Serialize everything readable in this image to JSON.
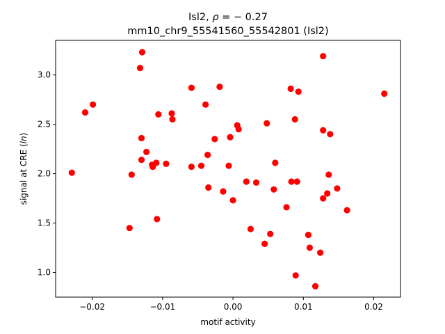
{
  "chart_data": {
    "type": "scatter",
    "title_line1": "Isl2, ρ = − 0.27",
    "title_line2": "mm10_chr9_55541560_55542801 (Isl2)",
    "xlabel": "motif activity",
    "ylabel": "signal at CRE (ln)",
    "xlim": [
      -0.0252,
      0.0238
    ],
    "ylim": [
      0.75,
      3.35
    ],
    "xticks": [
      -0.02,
      -0.01,
      0.0,
      0.01,
      0.02
    ],
    "xtick_labels": [
      "−0.02",
      "−0.01",
      "0.00",
      "0.01",
      "0.02"
    ],
    "yticks": [
      1.0,
      1.5,
      2.0,
      2.5,
      3.0
    ],
    "ytick_labels": [
      "1.0",
      "1.5",
      "2.0",
      "2.5",
      "3.0"
    ],
    "grid": false,
    "marker_color": "#ff0000",
    "points": [
      {
        "x": -0.0229,
        "y": 2.01
      },
      {
        "x": -0.021,
        "y": 2.62
      },
      {
        "x": -0.0199,
        "y": 2.7
      },
      {
        "x": -0.0147,
        "y": 1.45
      },
      {
        "x": -0.0144,
        "y": 1.99
      },
      {
        "x": -0.0132,
        "y": 3.07
      },
      {
        "x": -0.0129,
        "y": 3.23
      },
      {
        "x": -0.013,
        "y": 2.36
      },
      {
        "x": -0.013,
        "y": 2.14
      },
      {
        "x": -0.0123,
        "y": 2.22
      },
      {
        "x": -0.0115,
        "y": 2.09
      },
      {
        "x": -0.0114,
        "y": 2.07
      },
      {
        "x": -0.0109,
        "y": 2.11
      },
      {
        "x": -0.0108,
        "y": 1.54
      },
      {
        "x": -0.0106,
        "y": 2.6
      },
      {
        "x": -0.0095,
        "y": 2.1
      },
      {
        "x": -0.0087,
        "y": 2.61
      },
      {
        "x": -0.0086,
        "y": 2.55
      },
      {
        "x": -0.0059,
        "y": 2.87
      },
      {
        "x": -0.0059,
        "y": 2.07
      },
      {
        "x": -0.0045,
        "y": 2.08
      },
      {
        "x": -0.0039,
        "y": 2.7
      },
      {
        "x": -0.0036,
        "y": 2.19
      },
      {
        "x": -0.0035,
        "y": 1.86
      },
      {
        "x": -0.0026,
        "y": 2.35
      },
      {
        "x": -0.0019,
        "y": 2.88
      },
      {
        "x": -0.0014,
        "y": 1.82
      },
      {
        "x": -0.0006,
        "y": 2.08
      },
      {
        "x": -0.0004,
        "y": 2.37
      },
      {
        "x": 0.0,
        "y": 1.73
      },
      {
        "x": 0.0006,
        "y": 2.49
      },
      {
        "x": 0.0008,
        "y": 2.45
      },
      {
        "x": 0.0019,
        "y": 1.92
      },
      {
        "x": 0.0025,
        "y": 1.44
      },
      {
        "x": 0.0033,
        "y": 1.91
      },
      {
        "x": 0.0045,
        "y": 1.29
      },
      {
        "x": 0.0048,
        "y": 2.51
      },
      {
        "x": 0.0053,
        "y": 1.39
      },
      {
        "x": 0.0058,
        "y": 1.84
      },
      {
        "x": 0.006,
        "y": 2.11
      },
      {
        "x": 0.0076,
        "y": 1.66
      },
      {
        "x": 0.0082,
        "y": 2.86
      },
      {
        "x": 0.0083,
        "y": 1.92
      },
      {
        "x": 0.0088,
        "y": 2.55
      },
      {
        "x": 0.0089,
        "y": 0.97
      },
      {
        "x": 0.0091,
        "y": 1.92
      },
      {
        "x": 0.0093,
        "y": 2.83
      },
      {
        "x": 0.0107,
        "y": 1.38
      },
      {
        "x": 0.0109,
        "y": 1.25
      },
      {
        "x": 0.0117,
        "y": 0.86
      },
      {
        "x": 0.0124,
        "y": 1.2
      },
      {
        "x": 0.0128,
        "y": 3.19
      },
      {
        "x": 0.0128,
        "y": 2.44
      },
      {
        "x": 0.0128,
        "y": 1.75
      },
      {
        "x": 0.0134,
        "y": 1.8
      },
      {
        "x": 0.0136,
        "y": 1.99
      },
      {
        "x": 0.0138,
        "y": 2.4
      },
      {
        "x": 0.0148,
        "y": 1.85
      },
      {
        "x": 0.0162,
        "y": 1.63
      },
      {
        "x": 0.0215,
        "y": 2.81
      }
    ]
  }
}
